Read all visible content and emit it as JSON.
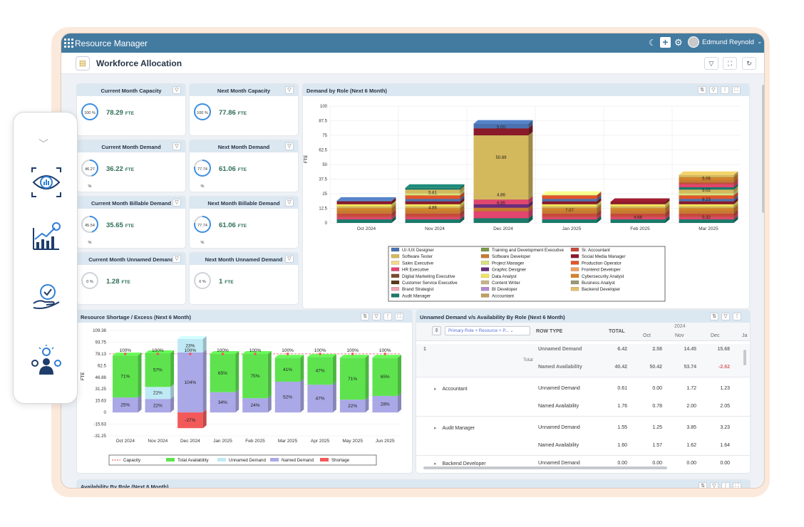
{
  "app": {
    "name": "Resource Manager",
    "user": "Edmund Reynold",
    "page_title": "Workforce Allocation"
  },
  "kpis": [
    {
      "title": "Current Month Capacity",
      "percent": "100 %",
      "value": "78.29",
      "unit": "FTE",
      "ratio": 1.0
    },
    {
      "title": "Next Month Capacity",
      "percent": "100 %",
      "value": "77.86",
      "unit": "FTE",
      "ratio": 1.0
    },
    {
      "title": "Current Month Demand",
      "percent": "46.27 %",
      "value": "36.22",
      "unit": "FTE",
      "ratio": 0.4627
    },
    {
      "title": "Next Month Demand",
      "percent": "77.74 %",
      "value": "61.06",
      "unit": "FTE",
      "ratio": 0.7774
    },
    {
      "title": "Current Month Billable Demand",
      "percent": "45.54 %",
      "value": "35.65",
      "unit": "FTE",
      "ratio": 0.4554
    },
    {
      "title": "Next Month Billable Demand",
      "percent": "77.74 %",
      "value": "61.06",
      "unit": "FTE",
      "ratio": 0.7774
    },
    {
      "title": "Current Month Unnamed Demand",
      "percent": "0 %",
      "value": "1.28",
      "unit": "FTE",
      "ratio": 0
    },
    {
      "title": "Next Month Unnamed Demand",
      "percent": "0 %",
      "value": "1",
      "unit": "FTE",
      "ratio": 0
    }
  ],
  "colors": {
    "topbar": "#437aa0",
    "header": "#dbe7f1",
    "accent": "#2d6e55",
    "green": "#5ee34f",
    "lav": "#aaa8e6",
    "cyan": "#bfeaf5",
    "red": "#f25a5a"
  },
  "chart_data": [
    {
      "type": "bar",
      "title": "Demand by Role (Next 6 Month)",
      "ylabel": "FTE",
      "ylim": [
        0,
        100
      ],
      "yticks": [
        "100",
        "87.5",
        "75",
        "62.5",
        "50",
        "37.5",
        "25",
        "12.5",
        "0"
      ],
      "categories": [
        "Oct 2024",
        "Nov 2024",
        "Dec 2024",
        "Jan 2025",
        "Feb 2025",
        "Mar 2025"
      ],
      "totals": [
        19,
        30,
        85,
        24,
        18,
        41
      ],
      "data_labels": [
        {
          "cat": 1,
          "text": "5.81",
          "y": 26
        },
        {
          "cat": 1,
          "text": "4.86",
          "y": 13
        },
        {
          "cat": 2,
          "text": "5.00",
          "y": 82
        },
        {
          "cat": 2,
          "text": "50.69",
          "y": 56
        },
        {
          "cat": 2,
          "text": "4.86",
          "y": 24
        },
        {
          "cat": 2,
          "text": "6.95",
          "y": 17
        },
        {
          "cat": 3,
          "text": "7.07",
          "y": 11
        },
        {
          "cat": 4,
          "text": "4.68",
          "y": 5
        },
        {
          "cat": 5,
          "text": "5.06",
          "y": 38
        },
        {
          "cat": 5,
          "text": "5.02",
          "y": 28
        },
        {
          "cat": 5,
          "text": "8.23",
          "y": 20
        },
        {
          "cat": 5,
          "text": "5.32",
          "y": 5
        }
      ],
      "legend": [
        {
          "name": "UI /UX Designer",
          "color": "#4a72b0"
        },
        {
          "name": "Software Tester",
          "color": "#d4b95c"
        },
        {
          "name": "Sales Executive",
          "color": "#f5d78b"
        },
        {
          "name": "HR Executive",
          "color": "#e2456e"
        },
        {
          "name": "Digital Marketing Executive",
          "color": "#7a4a2a"
        },
        {
          "name": "Customer Service Executive",
          "color": "#5b3a1a"
        },
        {
          "name": "Brand Strategist",
          "color": "#f0a3b3"
        },
        {
          "name": "Audit Manager",
          "color": "#1a7a6a"
        },
        {
          "name": "Training and Development Executive",
          "color": "#7c9a4c"
        },
        {
          "name": "Software Developer",
          "color": "#c87a30"
        },
        {
          "name": "Project Manager",
          "color": "#d9e07a"
        },
        {
          "name": "Graphic Designer",
          "color": "#6a2a7a"
        },
        {
          "name": "Data Analyst",
          "color": "#f3e45a"
        },
        {
          "name": "Content Writer",
          "color": "#c9b38a"
        },
        {
          "name": "BI Developer",
          "color": "#b38ad0"
        },
        {
          "name": "Accountant",
          "color": "#c0a060"
        },
        {
          "name": "Sr. Accountant",
          "color": "#c84a3a"
        },
        {
          "name": "Social Media Manager",
          "color": "#8a1a2a"
        },
        {
          "name": "Production Operator",
          "color": "#e2542a"
        },
        {
          "name": "Frontend Developer",
          "color": "#f0a060"
        },
        {
          "name": "Cybersecurity Analyst",
          "color": "#d4822a"
        },
        {
          "name": "Business Analyst",
          "color": "#9a9a7a"
        },
        {
          "name": "Backend Developer",
          "color": "#e4c06a"
        }
      ]
    },
    {
      "type": "bar",
      "title": "Resource Shortage / Excess (Next 6 Month)",
      "ylabel": "FTE",
      "ylim": [
        -31.25,
        109.38
      ],
      "yticks": [
        "109.38",
        "93.75",
        "78.13",
        "62.5",
        "46.88",
        "31.25",
        "15.63",
        "0",
        "-15.63",
        "-31.25"
      ],
      "categories": [
        "Oct 2024",
        "Nov 2024",
        "Dec 2024",
        "Jan 2025",
        "Feb 2025",
        "Mar 2025",
        "Apr 2025",
        "May 2025",
        "Jun 2025"
      ],
      "capacity_label": "100%",
      "named_demand": [
        20,
        18,
        80,
        27,
        19,
        41,
        37,
        17,
        22
      ],
      "total_availability": [
        56,
        45,
        0,
        51,
        59,
        32,
        37,
        56,
        51
      ],
      "unnamed_demand": [
        0,
        16,
        18,
        0,
        0,
        0,
        0,
        0,
        0
      ],
      "shortage": [
        0,
        0,
        -21,
        0,
        0,
        0,
        0,
        0,
        0
      ],
      "labels_named": [
        "25%",
        "22%",
        "104%",
        "34%",
        "24%",
        "52%",
        "47%",
        "22%",
        "28%"
      ],
      "labels_avail": [
        "71%",
        "57%",
        "",
        "65%",
        "75%",
        "41%",
        "47%",
        "71%",
        "65%"
      ],
      "labels_unnamed": [
        "",
        "21%",
        "23%",
        "",
        "",
        "",
        "",
        "",
        ""
      ],
      "labels_shortage": [
        "",
        "",
        "-27%",
        "",
        "",
        "",
        "",
        "",
        ""
      ],
      "legend": [
        {
          "name": "Capacity",
          "color": "#e0404a"
        },
        {
          "name": "Total Availability",
          "color": "#5ee34f"
        },
        {
          "name": "Unnamed Demand",
          "color": "#bfeaf5"
        },
        {
          "name": "Named Demand",
          "color": "#aaa8e6"
        },
        {
          "name": "Shortage",
          "color": "#f25a5a"
        }
      ]
    }
  ],
  "pivot": {
    "title": "Unnamed Demand v/s Availability By Role (Next 6 Month)",
    "field_chip": "Primary Role + Resource + P...",
    "row_type_header": "ROW TYPE",
    "total_header": "TOTAL",
    "year": "2024",
    "months": [
      "Oct",
      "Nov",
      "Dec",
      "Ja"
    ],
    "group": "1",
    "group_total_label": "Total",
    "rows": [
      {
        "role": "",
        "type": "Unnamed Demand",
        "total": "6.42",
        "oct": "2.58",
        "nov": "14.45",
        "dec": "15.68",
        "bold": true
      },
      {
        "role": "",
        "type": "Named Availability",
        "total": "40.42",
        "oct": "50.42",
        "nov": "53.74",
        "dec": "-2.62",
        "bold": true
      },
      {
        "role": "Accountant",
        "type": "Unnamed Demand",
        "total": "0.61",
        "oct": "0.00",
        "nov": "1.72",
        "dec": "1.23"
      },
      {
        "role": "",
        "type": "Named Availability",
        "total": "1.76",
        "oct": "0.78",
        "nov": "2.00",
        "dec": "2.05"
      },
      {
        "role": "Audit Manager",
        "type": "Unnamed Demand",
        "total": "1.55",
        "oct": "1.25",
        "nov": "3.85",
        "dec": "3.23"
      },
      {
        "role": "",
        "type": "Named Availability",
        "total": "1.60",
        "oct": "1.57",
        "nov": "1.62",
        "dec": "1.64"
      },
      {
        "role": "Backend Developer",
        "type": "Unnamed Demand",
        "total": "0.00",
        "oct": "0.00",
        "nov": "0.00",
        "dec": "0.00"
      }
    ]
  },
  "bottom_panel": {
    "title": "Availability By Role (Next 6 Month)"
  }
}
